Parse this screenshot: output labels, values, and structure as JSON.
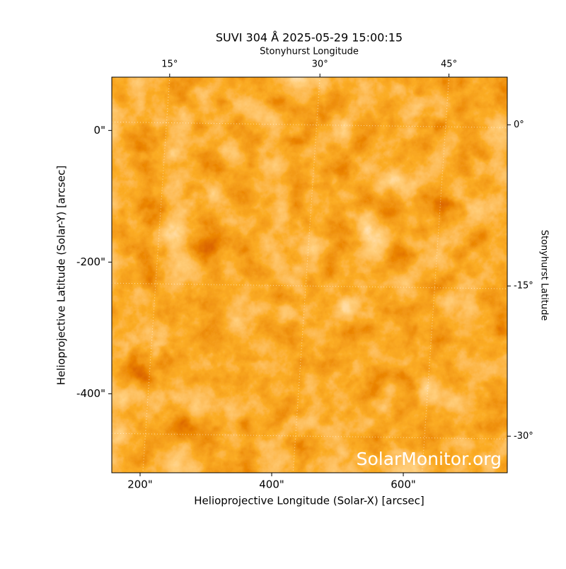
{
  "chart_data": {
    "type": "image",
    "title": "SUVI 304 Å 2025-05-29 15:00:15",
    "xlabel": "Helioprojective Longitude (Solar-X) [arcsec]",
    "ylabel": "Helioprojective Latitude (Solar-Y) [arcsec]",
    "x2label": "Stonyhurst Longitude",
    "y2label": "Stonyhurst Latitude",
    "xlim": [
      157,
      758
    ],
    "ylim": [
      -520,
      81
    ],
    "xticks": [
      {
        "value": 200,
        "label": "200\""
      },
      {
        "value": 400,
        "label": "400\""
      },
      {
        "value": 600,
        "label": "600\""
      }
    ],
    "yticks": [
      {
        "value": 0,
        "label": "0\""
      },
      {
        "value": -200,
        "label": "-200\""
      },
      {
        "value": -400,
        "label": "-400\""
      }
    ],
    "x2lim": [
      9.55,
      53.2
    ],
    "y2lim": [
      4.39,
      -33.97
    ],
    "x2ticks": [
      {
        "value": 15,
        "label": "15°"
      },
      {
        "value": 30,
        "label": "30°"
      },
      {
        "value": 45,
        "label": "45°"
      }
    ],
    "y2ticks": [
      {
        "value": 0,
        "label": "0°"
      },
      {
        "value": -15,
        "label": "-15°"
      },
      {
        "value": -30,
        "label": "-30°"
      }
    ],
    "secondary_scale": "sine",
    "grid": true,
    "watermark": "SolarMonitor.org"
  }
}
